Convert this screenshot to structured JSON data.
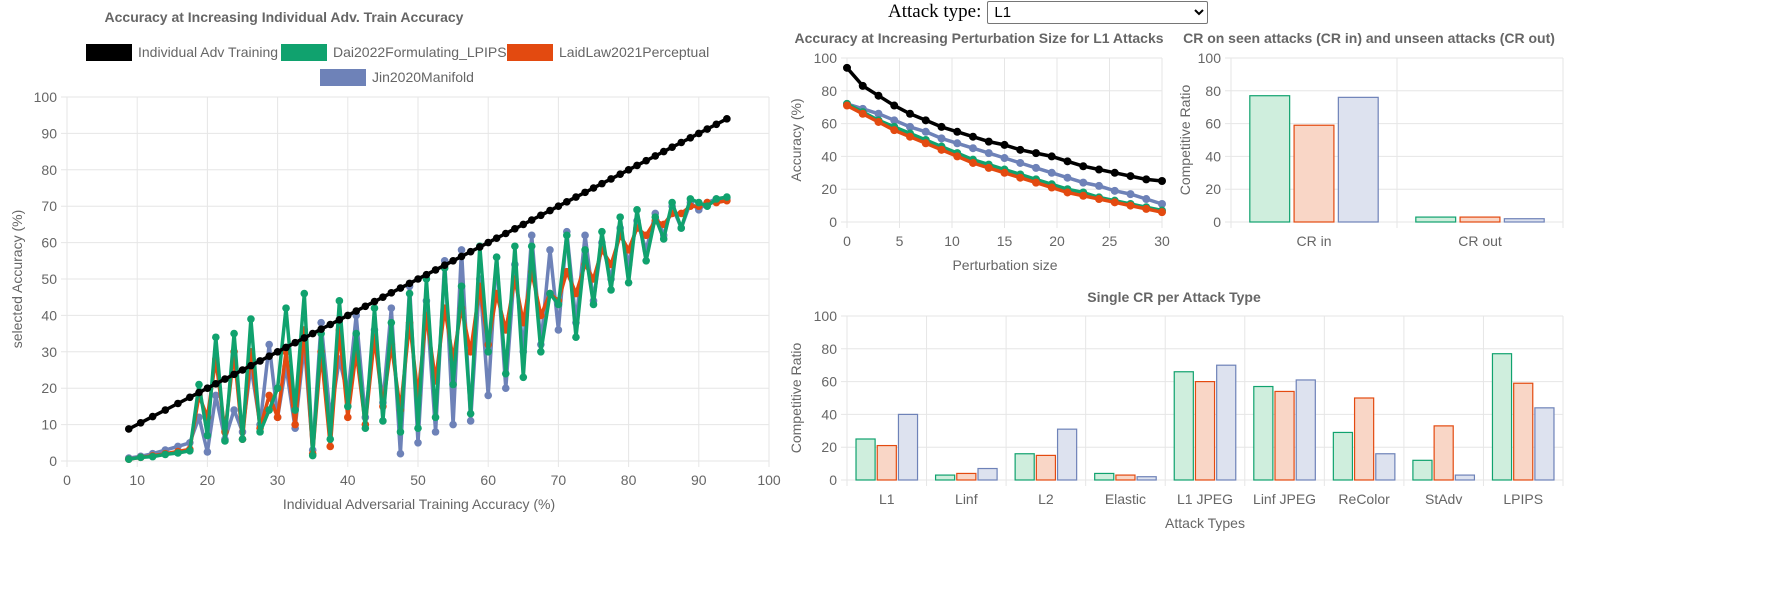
{
  "controls": {
    "attack_label": "Attack type:",
    "attack_selected": "L1",
    "attack_options": [
      "L1"
    ]
  },
  "colors": {
    "individual": "#000000",
    "dai": "#10a26e",
    "laidlaw": "#e34a10",
    "jin": "#6e82b8",
    "dai_fill": "#cfeedd",
    "laidlaw_fill": "#f9d6c6",
    "jin_fill": "#dde2ef"
  },
  "chart_data": [
    {
      "id": "main",
      "type": "line",
      "title": "Accuracy at Increasing Individual Adv. Train Accuracy",
      "xlabel": "Individual Adversarial Training Accuracy (%)",
      "ylabel": "selected Accuracy (%)",
      "xlim": [
        0,
        100
      ],
      "ylim": [
        0,
        100
      ],
      "xticks": [
        0,
        10,
        20,
        30,
        40,
        50,
        60,
        70,
        80,
        90,
        100
      ],
      "yticks": [
        0,
        10,
        20,
        30,
        40,
        50,
        60,
        70,
        80,
        90,
        100
      ],
      "grid": true,
      "legend": "top",
      "x": [
        8.8,
        10.5,
        12.2,
        14.0,
        15.8,
        17.5,
        18.8,
        20.0,
        21.2,
        22.5,
        23.8,
        25.0,
        26.2,
        27.5,
        28.8,
        30.0,
        31.2,
        32.5,
        33.8,
        35.0,
        36.2,
        37.5,
        38.8,
        40.0,
        41.2,
        42.5,
        43.8,
        45.0,
        46.2,
        47.5,
        48.8,
        50.0,
        51.2,
        52.5,
        53.8,
        55.0,
        56.2,
        57.5,
        58.8,
        60.0,
        61.2,
        62.5,
        63.8,
        65.0,
        66.2,
        67.5,
        68.8,
        70.0,
        71.2,
        72.5,
        73.8,
        75.0,
        76.2,
        77.5,
        78.8,
        80.0,
        81.2,
        82.5,
        83.8,
        85.0,
        86.2,
        87.5,
        88.8,
        90.0,
        91.2,
        92.5,
        94.0
      ],
      "series": [
        {
          "name": "Individual Adv Training",
          "values": [
            8.8,
            10.5,
            12.2,
            14.0,
            15.8,
            17.5,
            18.8,
            20.0,
            21.2,
            22.5,
            23.8,
            25.0,
            26.2,
            27.5,
            28.8,
            30.0,
            31.2,
            32.5,
            33.8,
            35.0,
            36.2,
            37.5,
            38.8,
            40.0,
            41.2,
            42.5,
            43.8,
            45.0,
            46.2,
            47.5,
            48.8,
            50.0,
            51.2,
            52.5,
            53.8,
            55.0,
            56.2,
            57.5,
            58.8,
            60.0,
            61.2,
            62.5,
            63.8,
            65.0,
            66.2,
            67.5,
            68.8,
            70.0,
            71.2,
            72.5,
            73.8,
            75.0,
            76.2,
            77.5,
            78.8,
            80.0,
            81.2,
            82.5,
            83.8,
            85.0,
            86.2,
            87.5,
            88.8,
            90.0,
            91.2,
            92.5,
            94.0
          ]
        },
        {
          "name": "Dai2022Formulating_LPIPS",
          "values": [
            0.5,
            1.0,
            1.2,
            1.8,
            2.2,
            2.8,
            21.0,
            7.0,
            34.0,
            5.5,
            35.0,
            6.0,
            39.0,
            8.0,
            14.0,
            20.0,
            42.0,
            14.0,
            46.0,
            1.5,
            35.0,
            6.0,
            44.0,
            15.0,
            35.0,
            9.0,
            42.0,
            11.0,
            38.0,
            8.0,
            46.0,
            9.0,
            50.0,
            12.0,
            53.0,
            21.0,
            48.0,
            13.0,
            59.0,
            30.0,
            56.0,
            24.0,
            59.0,
            23.0,
            59.0,
            30.0,
            46.0,
            43.0,
            62.0,
            34.0,
            58.0,
            43.0,
            63.0,
            47.0,
            67.0,
            49.0,
            69.0,
            55.0,
            67.0,
            61.0,
            71.0,
            64.0,
            72.0,
            71.0,
            70.0,
            72.0,
            72.5
          ]
        },
        {
          "name": "LaidLaw2021Perceptual",
          "values": [
            0.5,
            1.0,
            1.4,
            2.0,
            2.6,
            3.2,
            18.0,
            12.0,
            28.0,
            8.0,
            30.0,
            6.0,
            30.0,
            9.0,
            18.0,
            12.0,
            30.0,
            10.0,
            36.0,
            2.0,
            30.0,
            4.0,
            36.0,
            12.0,
            30.0,
            10.0,
            34.0,
            15.0,
            32.0,
            14.0,
            38.0,
            18.0,
            40.0,
            22.0,
            42.0,
            28.0,
            42.0,
            30.0,
            48.0,
            32.0,
            46.0,
            36.0,
            50.0,
            38.0,
            52.0,
            40.0,
            46.0,
            44.0,
            52.0,
            46.0,
            54.0,
            50.0,
            58.0,
            54.0,
            62.0,
            58.0,
            64.0,
            62.0,
            66.0,
            65.0,
            68.0,
            68.0,
            70.0,
            70.0,
            71.0,
            71.0,
            71.5
          ]
        },
        {
          "name": "Jin2020Manifold",
          "values": [
            0.8,
            1.3,
            2.0,
            3.0,
            4.0,
            5.0,
            12.0,
            2.5,
            18.0,
            6.0,
            14.0,
            8.0,
            26.0,
            10.0,
            32.0,
            12.0,
            26.0,
            9.0,
            32.0,
            3.0,
            38.0,
            12.0,
            28.0,
            18.0,
            40.0,
            12.0,
            36.0,
            16.0,
            42.0,
            2.0,
            48.0,
            5.0,
            44.0,
            8.0,
            55.0,
            10.0,
            58.0,
            11.0,
            50.0,
            18.0,
            56.0,
            20.0,
            54.0,
            30.0,
            62.0,
            32.0,
            58.0,
            36.0,
            63.0,
            38.0,
            62.0,
            44.0,
            60.0,
            50.0,
            64.0,
            54.0,
            66.0,
            58.0,
            68.0,
            62.0,
            70.0,
            64.0,
            71.0,
            69.0,
            71.0,
            72.0,
            72.0
          ]
        }
      ]
    },
    {
      "id": "perturb",
      "type": "line",
      "title": "Accuracy at Increasing Perturbation Size for L1 Attacks",
      "xlabel": "Perturbation size",
      "ylabel": "Accuracy (%)",
      "xlim": [
        0,
        30
      ],
      "ylim": [
        0,
        100
      ],
      "xticks": [
        0,
        5,
        10,
        15,
        20,
        25,
        30
      ],
      "yticks": [
        0,
        20,
        40,
        60,
        80,
        100
      ],
      "grid": true,
      "x": [
        0,
        1.5,
        3,
        4.5,
        6,
        7.5,
        9,
        10.5,
        12,
        13.5,
        15,
        16.5,
        18,
        19.5,
        21,
        22.5,
        24,
        25.5,
        27,
        28.5,
        30
      ],
      "series": [
        {
          "name": "Individual Adv Training",
          "values": [
            94,
            83,
            77,
            71,
            66,
            62,
            58,
            55,
            52,
            49,
            47,
            44,
            42,
            40,
            37,
            34,
            32,
            30,
            28,
            26,
            25
          ]
        },
        {
          "name": "Jin2020Manifold",
          "values": [
            72,
            69,
            66,
            62,
            58,
            55,
            51,
            48,
            45,
            42,
            39,
            36,
            33,
            30,
            27,
            24,
            22,
            19,
            17,
            14,
            11
          ]
        },
        {
          "name": "Dai2022Formulating_LPIPS",
          "values": [
            72,
            67,
            62,
            58,
            54,
            50,
            46,
            42,
            38,
            35,
            32,
            29,
            26,
            23,
            20,
            18,
            15,
            13,
            11,
            9,
            7
          ]
        },
        {
          "name": "LaidLaw2021Perceptual",
          "values": [
            71,
            66,
            61,
            56,
            52,
            48,
            44,
            40,
            36,
            33,
            30,
            27,
            24,
            21,
            18,
            16,
            14,
            12,
            10,
            8,
            6
          ]
        }
      ]
    },
    {
      "id": "cr",
      "type": "bar",
      "title": "CR on seen attacks (CR in) and unseen attacks (CR out)",
      "xlabel": "",
      "ylabel": "Competitive Ratio",
      "ylim": [
        0,
        100
      ],
      "yticks": [
        0,
        20,
        40,
        60,
        80,
        100
      ],
      "grid": true,
      "categories": [
        "CR in",
        "CR out"
      ],
      "series": [
        {
          "name": "Dai2022Formulating_LPIPS",
          "values": [
            77,
            3
          ]
        },
        {
          "name": "LaidLaw2021Perceptual",
          "values": [
            59,
            3
          ]
        },
        {
          "name": "Jin2020Manifold",
          "values": [
            76,
            2
          ]
        }
      ]
    },
    {
      "id": "single",
      "type": "bar",
      "title": "Single CR per Attack Type",
      "xlabel": "Attack Types",
      "ylabel": "Competitive Ratio",
      "ylim": [
        0,
        100
      ],
      "yticks": [
        0,
        20,
        40,
        60,
        80,
        100
      ],
      "grid": true,
      "categories": [
        "L1",
        "Linf",
        "L2",
        "Elastic",
        "L1 JPEG",
        "Linf JPEG",
        "ReColor",
        "StAdv",
        "LPIPS"
      ],
      "series": [
        {
          "name": "Dai2022Formulating_LPIPS",
          "values": [
            25,
            3,
            16,
            4,
            66,
            57,
            29,
            12,
            77
          ]
        },
        {
          "name": "LaidLaw2021Perceptual",
          "values": [
            21,
            4,
            15,
            3,
            60,
            54,
            50,
            33,
            59
          ]
        },
        {
          "name": "Jin2020Manifold",
          "values": [
            40,
            7,
            31,
            2,
            70,
            61,
            16,
            3,
            44
          ]
        }
      ]
    }
  ]
}
